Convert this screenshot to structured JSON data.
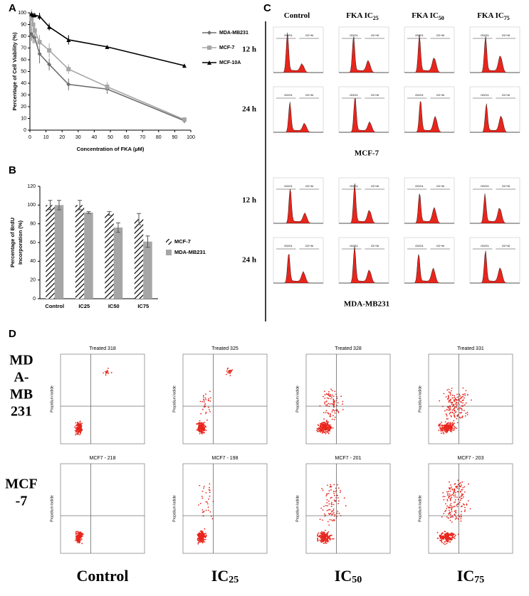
{
  "panels": {
    "a": "A",
    "b": "B",
    "c": "C",
    "d": "D"
  },
  "chart_data": [
    {
      "type": "line",
      "x_label": "Concentration of FKA (µM)",
      "y_label": "Percentage of Cell Viability (%)",
      "x": [
        1,
        2,
        3,
        6,
        12,
        24,
        48,
        96
      ],
      "xlim": [
        0,
        100
      ],
      "xticks": [
        0,
        10,
        20,
        30,
        40,
        50,
        60,
        70,
        80,
        90,
        100
      ],
      "ylim": [
        0,
        100
      ],
      "yticks": [
        0,
        10,
        20,
        30,
        40,
        50,
        60,
        70,
        80,
        90,
        100
      ],
      "series": [
        {
          "name": "MDA-MB231",
          "color": "#6e6e6e",
          "marker": "diamond",
          "values": [
            82,
            80,
            79,
            65,
            56,
            39,
            35,
            8
          ],
          "errors": [
            6,
            6,
            5,
            8,
            5,
            5,
            4,
            2
          ]
        },
        {
          "name": "MCF-7",
          "color": "#a6a6a6",
          "marker": "square",
          "values": [
            95,
            90,
            85,
            75,
            68,
            52,
            37,
            9
          ],
          "errors": [
            8,
            10,
            6,
            6,
            6,
            4,
            4,
            2
          ]
        },
        {
          "name": "MCF-10A",
          "color": "#000000",
          "marker": "triangle",
          "values": [
            99,
            98,
            98,
            97,
            88,
            77,
            71,
            55
          ],
          "errors": [
            2,
            2,
            2,
            3,
            3,
            4,
            1,
            1
          ]
        }
      ]
    },
    {
      "type": "bar",
      "y_label": [
        "Percentage of BrdU",
        "Incorporation (%)"
      ],
      "categories": [
        "Control",
        "IC25",
        "IC50",
        "IC75"
      ],
      "ylim": [
        0,
        120
      ],
      "yticks": [
        0,
        20,
        40,
        60,
        80,
        100,
        120
      ],
      "series": [
        {
          "name": "MCF-7",
          "color": "#000000",
          "pattern": "hatch",
          "values": [
            100,
            100,
            91,
            85
          ],
          "errors": [
            5,
            5,
            2,
            6
          ]
        },
        {
          "name": "MDA-MB231",
          "color": "#a6a6a6",
          "pattern": "solid",
          "values": [
            100,
            92,
            76,
            61
          ],
          "errors": [
            5,
            1,
            5,
            6
          ]
        }
      ]
    }
  ],
  "panel_c": {
    "columns": [
      {
        "main": "Control",
        "sub": null
      },
      {
        "main": "FKA IC",
        "sub": "25"
      },
      {
        "main": "FKA IC",
        "sub": "50"
      },
      {
        "main": "FKA IC",
        "sub": "75"
      }
    ],
    "groups": [
      {
        "name": "MCF-7",
        "rows": [
          "12 h",
          "24 h"
        ]
      },
      {
        "name": "MDA-MB231",
        "rows": [
          "12 h",
          "24 h"
        ]
      }
    ],
    "gates": [
      "G0/G1",
      "G2+M"
    ]
  },
  "panel_d": {
    "rows": [
      {
        "label": [
          "MD",
          "A-",
          "MB",
          "231"
        ],
        "titles": [
          "Treated 318",
          "Treated 325",
          "Treated 328",
          "Treated 331"
        ]
      },
      {
        "label": [
          "MCF",
          "-7"
        ],
        "titles": [
          "MCF7 - 218",
          "MCF7 - 198",
          "MCF7 - 201",
          "MCF7 - 203"
        ]
      }
    ],
    "y_label": "Propidium Iodide",
    "columns": [
      {
        "main": "Control",
        "sub": null
      },
      {
        "main": "IC",
        "sub": "25"
      },
      {
        "main": "IC",
        "sub": "50"
      },
      {
        "main": "IC",
        "sub": "75"
      }
    ]
  }
}
